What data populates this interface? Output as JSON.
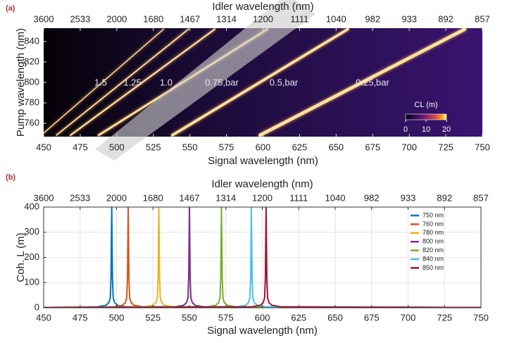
{
  "chart_data": [
    {
      "type": "heatmap",
      "panel_label": "(a)",
      "x2label": "Idler wavelength (nm)",
      "xlabel": "Signal wavelength (nm)",
      "ylabel": "Pump wavelength (nm)",
      "xlim": [
        450,
        750
      ],
      "xticks": [
        450,
        475,
        500,
        525,
        550,
        575,
        600,
        625,
        650,
        675,
        700,
        725,
        750
      ],
      "x2ticks": [
        {
          "value": 450,
          "label": "3600"
        },
        {
          "value": 475,
          "label": "2533"
        },
        {
          "value": 500,
          "label": "2000"
        },
        {
          "value": 525,
          "label": "1680"
        },
        {
          "value": 550,
          "label": "1467"
        },
        {
          "value": 575,
          "label": "1314"
        },
        {
          "value": 600,
          "label": "1200"
        },
        {
          "value": 625,
          "label": "1111"
        },
        {
          "value": 650,
          "label": "1040"
        },
        {
          "value": 675,
          "label": "982"
        },
        {
          "value": 700,
          "label": "933"
        },
        {
          "value": 725,
          "label": "892"
        },
        {
          "value": 750,
          "label": "857"
        }
      ],
      "ylim": [
        747,
        853
      ],
      "yticks": [
        760,
        780,
        800,
        820,
        840
      ],
      "series": [
        {
          "name": "1.5",
          "color": "#fde4a0",
          "x": [
            450,
            532
          ],
          "values": [
            750.5,
            852
          ]
        },
        {
          "name": "1.25",
          "color": "#fde4a0",
          "x": [
            458.7,
            549
          ],
          "values": [
            748.4,
            852
          ]
        },
        {
          "name": "1.0",
          "color": "#fde4a0",
          "x": [
            468.3,
            567
          ],
          "values": [
            748.4,
            852
          ]
        },
        {
          "name": "0.75,bar",
          "color": "#fde4a0",
          "x": [
            487.6,
            603
          ],
          "values": [
            748.4,
            852
          ]
        },
        {
          "name": "0.5,bar",
          "color": "#fde4a0",
          "x": [
            538,
            658
          ],
          "values": [
            748.4,
            852
          ]
        },
        {
          "name": "0.25,bar",
          "color": "#fde4a0",
          "x": [
            598,
            738
          ],
          "values": [
            748.4,
            852
          ]
        }
      ],
      "colorbar": {
        "label": "CL (m)",
        "lim": [
          0,
          20
        ],
        "ticks": [
          0,
          10,
          20
        ]
      }
    },
    {
      "type": "line",
      "panel_label": "(b)",
      "x2label": "Idler wavelength (nm)",
      "xlabel": "Signal wavelength (nm)",
      "ylabel": "Coh. L (m)",
      "xlim": [
        450,
        750
      ],
      "xticks": [
        450,
        475,
        500,
        525,
        550,
        575,
        600,
        625,
        650,
        675,
        700,
        725,
        750
      ],
      "x2ticks": [
        {
          "value": 450,
          "label": "3600"
        },
        {
          "value": 475,
          "label": "2533"
        },
        {
          "value": 500,
          "label": "2000"
        },
        {
          "value": 525,
          "label": "1680"
        },
        {
          "value": 550,
          "label": "1467"
        },
        {
          "value": 575,
          "label": "1314"
        },
        {
          "value": 600,
          "label": "1200"
        },
        {
          "value": 625,
          "label": "1111"
        },
        {
          "value": 650,
          "label": "1040"
        },
        {
          "value": 675,
          "label": "982"
        },
        {
          "value": 700,
          "label": "933"
        },
        {
          "value": 725,
          "label": "892"
        },
        {
          "value": 750,
          "label": "857"
        }
      ],
      "ylim": [
        0,
        400
      ],
      "yticks": [
        0,
        100,
        200,
        300,
        400
      ],
      "grid": true,
      "legend": "upper right",
      "series": [
        {
          "name": "750 nm",
          "color": "#0072bd",
          "x": [
            450,
            486.7,
            492.7,
            494.7,
            495.7,
            496.2,
            496.7,
            497.2,
            497.7,
            498.7,
            500.7,
            506.7,
            750
          ],
          "values": [
            1,
            4,
            10,
            20,
            40,
            120,
            400,
            120,
            40,
            20,
            10,
            4,
            1
          ]
        },
        {
          "name": "760 nm",
          "color": "#d95319",
          "x": [
            450,
            498,
            504,
            506,
            507,
            507.5,
            508,
            508.5,
            509,
            510,
            512,
            518,
            750
          ],
          "values": [
            1,
            4,
            10,
            20,
            40,
            120,
            400,
            120,
            40,
            20,
            10,
            4,
            1
          ]
        },
        {
          "name": "780 nm",
          "color": "#edb120",
          "x": [
            450,
            519,
            525,
            527,
            528,
            528.5,
            529,
            529.5,
            530,
            531,
            533,
            539,
            750
          ],
          "values": [
            1,
            4,
            10,
            20,
            40,
            120,
            400,
            120,
            40,
            20,
            10,
            4,
            1
          ]
        },
        {
          "name": "800 nm",
          "color": "#7e2f8e",
          "x": [
            450,
            540,
            546,
            548,
            549,
            549.5,
            550,
            550.5,
            551,
            552,
            554,
            560,
            750
          ],
          "values": [
            1,
            4,
            10,
            20,
            40,
            120,
            400,
            120,
            40,
            20,
            10,
            4,
            1
          ]
        },
        {
          "name": "820 nm",
          "color": "#77ac30",
          "x": [
            450,
            562,
            568,
            570,
            571,
            571.5,
            572,
            572.5,
            573,
            574,
            576,
            582,
            750
          ],
          "values": [
            1,
            4,
            10,
            20,
            40,
            120,
            400,
            120,
            40,
            20,
            10,
            4,
            1
          ]
        },
        {
          "name": "840 nm",
          "color": "#4dbeee",
          "x": [
            450,
            582.5,
            588.5,
            590.5,
            591.5,
            592,
            592.5,
            593,
            593.5,
            594.5,
            596.5,
            602.5,
            750
          ],
          "values": [
            1,
            4,
            10,
            20,
            40,
            120,
            400,
            120,
            40,
            20,
            10,
            4,
            1
          ]
        },
        {
          "name": "850 nm",
          "color": "#a2142f",
          "x": [
            450,
            592.6,
            598.6,
            600.6,
            601.6,
            602.1,
            602.6,
            603.1,
            603.6,
            604.6,
            606.6,
            612.6,
            750
          ],
          "values": [
            1,
            4,
            10,
            20,
            40,
            120,
            400,
            120,
            40,
            20,
            10,
            4,
            1
          ]
        }
      ]
    }
  ]
}
